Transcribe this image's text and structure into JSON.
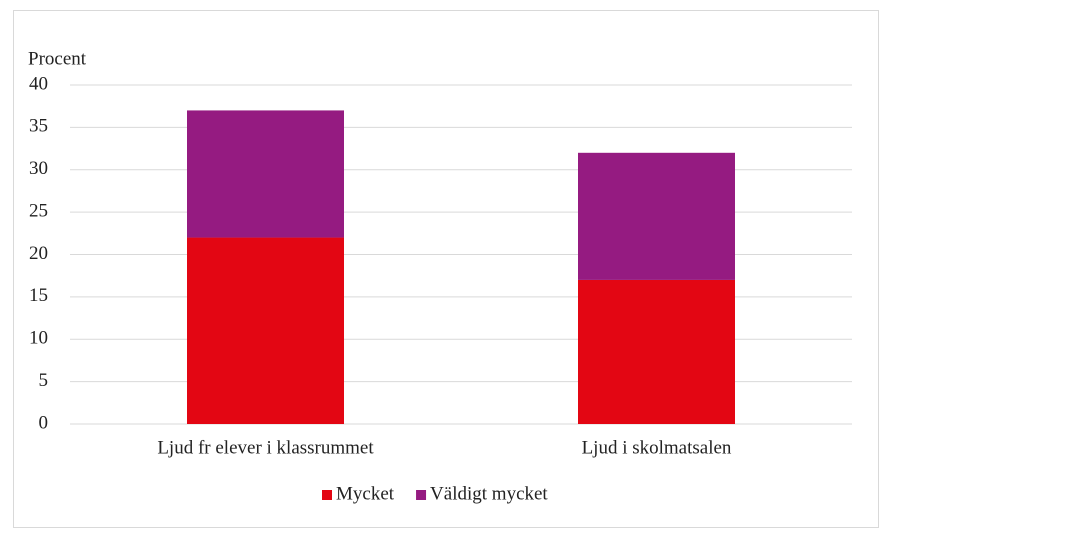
{
  "chart_data": {
    "type": "stacked-bar",
    "y_label": "Procent",
    "categories": [
      "Ljud fr elever i klassrummet",
      "Ljud i skolmatsalen"
    ],
    "series": [
      {
        "name": "Mycket",
        "color": "#e30613",
        "values": [
          22,
          17
        ]
      },
      {
        "name": "Väldigt mycket",
        "color": "#951b81",
        "values": [
          15,
          15
        ]
      }
    ],
    "ylim": [
      0,
      40
    ],
    "yticks": [
      0,
      5,
      10,
      15,
      20,
      25,
      30,
      35,
      40
    ],
    "grid": true,
    "legend": "bottom"
  }
}
